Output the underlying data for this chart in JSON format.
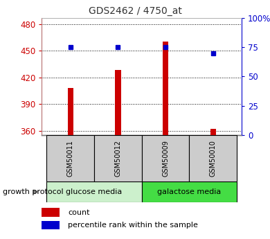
{
  "title": "GDS2462 / 4750_at",
  "samples": [
    "GSM50011",
    "GSM50012",
    "GSM50009",
    "GSM50010"
  ],
  "counts": [
    408,
    428,
    460,
    362
  ],
  "percentiles": [
    75,
    75,
    75,
    70
  ],
  "ylim_left": [
    355,
    487
  ],
  "ylim_right": [
    0,
    100
  ],
  "yticks_left": [
    360,
    390,
    420,
    450,
    480
  ],
  "yticks_right": [
    0,
    25,
    50,
    75,
    100
  ],
  "ytick_right_labels": [
    "0",
    "25",
    "50",
    "75",
    "100%"
  ],
  "bar_color": "#cc0000",
  "dot_color": "#0000cc",
  "bar_bottom": 355,
  "groups": [
    {
      "label": "glucose media",
      "samples": [
        0,
        1
      ],
      "color": "#ccf0cc"
    },
    {
      "label": "galactose media",
      "samples": [
        2,
        3
      ],
      "color": "#44dd44"
    }
  ],
  "group_label": "growth protocol",
  "legend_count_label": "count",
  "legend_percentile_label": "percentile rank within the sample",
  "title_color": "#333333",
  "left_axis_color": "#cc0000",
  "right_axis_color": "#0000cc",
  "tick_label_box_color": "#cccccc",
  "figsize": [
    3.9,
    3.45
  ],
  "dpi": 100
}
